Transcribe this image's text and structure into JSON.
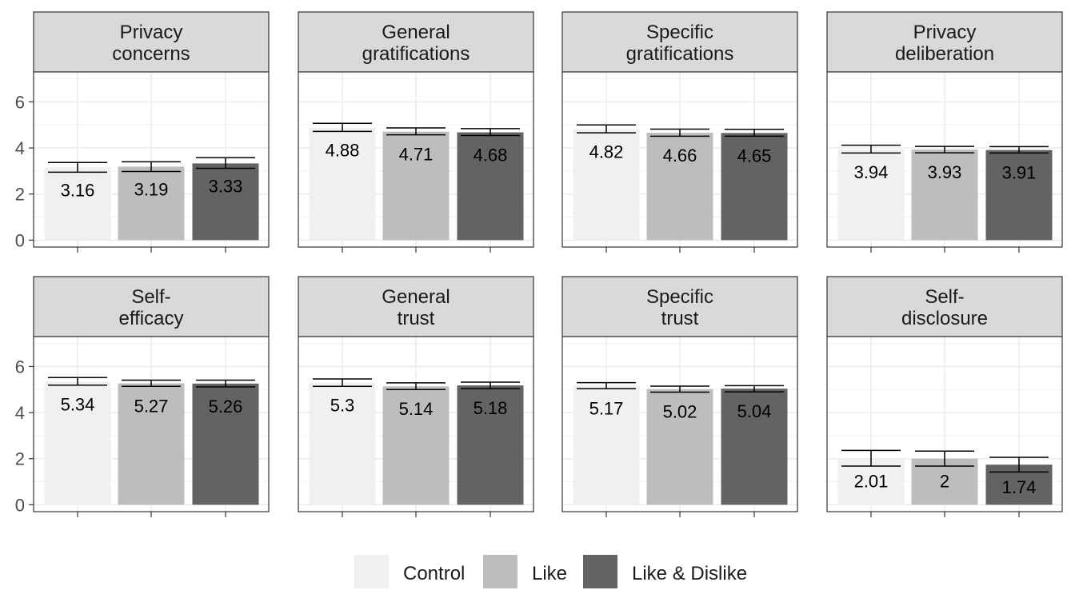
{
  "chart_data": {
    "type": "bar",
    "title": "",
    "xlabel": "",
    "ylabel": "",
    "ylim": [
      -0.3,
      7.3
    ],
    "yticks": [
      0,
      2,
      4,
      6
    ],
    "grid": true,
    "legend_position": "bottom",
    "legend": {
      "items": [
        {
          "label": "Control",
          "color": "#f0f0f0"
        },
        {
          "label": "Like",
          "color": "#bdbdbd"
        },
        {
          "label": "Like & Dislike",
          "color": "#636363"
        }
      ]
    },
    "categories": [
      "Control",
      "Like",
      "Like & Dislike"
    ],
    "panels": [
      {
        "title_lines": [
          "Privacy",
          "concerns"
        ],
        "values": [
          3.16,
          3.19,
          3.33
        ],
        "value_labels": [
          "3.16",
          "3.19",
          "3.33"
        ],
        "error_low": [
          2.95,
          2.98,
          3.12
        ],
        "error_high": [
          3.37,
          3.4,
          3.58
        ]
      },
      {
        "title_lines": [
          "General",
          "gratifications"
        ],
        "values": [
          4.88,
          4.71,
          4.68
        ],
        "value_labels": [
          "4.88",
          "4.71",
          "4.68"
        ],
        "error_low": [
          4.72,
          4.57,
          4.54
        ],
        "error_high": [
          5.07,
          4.87,
          4.84
        ]
      },
      {
        "title_lines": [
          "Specific",
          "gratifications"
        ],
        "values": [
          4.82,
          4.66,
          4.65
        ],
        "value_labels": [
          "4.82",
          "4.66",
          "4.65"
        ],
        "error_low": [
          4.66,
          4.51,
          4.51
        ],
        "error_high": [
          5.0,
          4.82,
          4.81
        ]
      },
      {
        "title_lines": [
          "Privacy",
          "deliberation"
        ],
        "values": [
          3.94,
          3.93,
          3.91
        ],
        "value_labels": [
          "3.94",
          "3.93",
          "3.91"
        ],
        "error_low": [
          3.78,
          3.79,
          3.78
        ],
        "error_high": [
          4.12,
          4.07,
          4.06
        ]
      },
      {
        "title_lines": [
          "Self-",
          "efficacy"
        ],
        "values": [
          5.34,
          5.27,
          5.26
        ],
        "value_labels": [
          "5.34",
          "5.27",
          "5.26"
        ],
        "error_low": [
          5.19,
          5.14,
          5.12
        ],
        "error_high": [
          5.52,
          5.41,
          5.41
        ]
      },
      {
        "title_lines": [
          "General",
          "trust"
        ],
        "values": [
          5.3,
          5.14,
          5.18
        ],
        "value_labels": [
          "5.3",
          "5.14",
          "5.18"
        ],
        "error_low": [
          5.14,
          5.0,
          5.04
        ],
        "error_high": [
          5.46,
          5.29,
          5.32
        ]
      },
      {
        "title_lines": [
          "Specific",
          "trust"
        ],
        "values": [
          5.17,
          5.02,
          5.04
        ],
        "value_labels": [
          "5.17",
          "5.02",
          "5.04"
        ],
        "error_low": [
          5.04,
          4.89,
          4.9
        ],
        "error_high": [
          5.3,
          5.15,
          5.17
        ]
      },
      {
        "title_lines": [
          "Self-",
          "disclosure"
        ],
        "values": [
          2.01,
          2.0,
          1.74
        ],
        "value_labels": [
          "2.01",
          "2",
          "1.74"
        ],
        "error_low": [
          1.68,
          1.68,
          1.42
        ],
        "error_high": [
          2.36,
          2.33,
          2.06
        ]
      }
    ]
  }
}
